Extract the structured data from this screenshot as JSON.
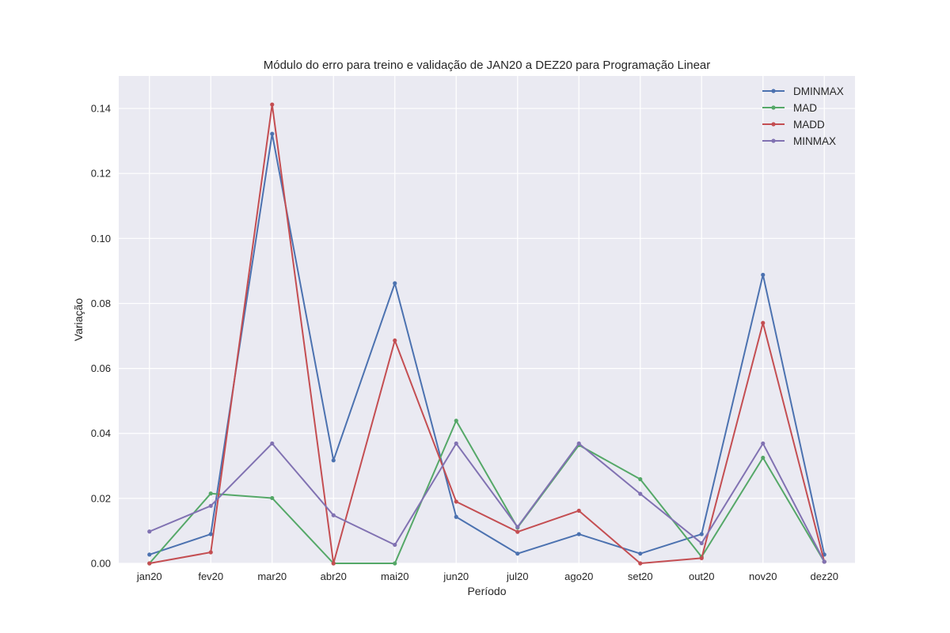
{
  "chart_data": {
    "type": "line",
    "title": "Módulo do erro para treino e validação de JAN20 a DEZ20 para Programação Linear",
    "xlabel": "Período",
    "ylabel": "Variação",
    "categories": [
      "jan20",
      "fev20",
      "mar20",
      "abr20",
      "mai20",
      "jun20",
      "jul20",
      "ago20",
      "set20",
      "out20",
      "nov20",
      "dez20"
    ],
    "ylim": [
      0,
      0.15
    ],
    "yticks": [
      "0.00",
      "0.02",
      "0.04",
      "0.06",
      "0.08",
      "0.10",
      "0.12",
      "0.14"
    ],
    "grid": true,
    "legend_position": "top-right",
    "series": [
      {
        "name": "DMINMAX",
        "color": "#4c72b0",
        "values": [
          0.0027,
          0.009,
          0.1322,
          0.0317,
          0.0862,
          0.0143,
          0.003,
          0.009,
          0.003,
          0.009,
          0.0888,
          0.0027
        ]
      },
      {
        "name": "MAD",
        "color": "#55a868",
        "values": [
          0.0,
          0.0215,
          0.0201,
          0.0,
          0.0,
          0.0439,
          0.011,
          0.0364,
          0.0259,
          0.002,
          0.0325,
          0.0005
        ]
      },
      {
        "name": "MADD",
        "color": "#c44e52",
        "values": [
          0.0,
          0.0034,
          0.1412,
          0.0,
          0.0686,
          0.019,
          0.0097,
          0.0162,
          0.0,
          0.0016,
          0.074,
          0.0005
        ]
      },
      {
        "name": "MINMAX",
        "color": "#8172b2",
        "values": [
          0.0098,
          0.0177,
          0.0369,
          0.0148,
          0.0057,
          0.0369,
          0.0112,
          0.0369,
          0.0214,
          0.0062,
          0.0369,
          0.0005
        ]
      }
    ]
  }
}
